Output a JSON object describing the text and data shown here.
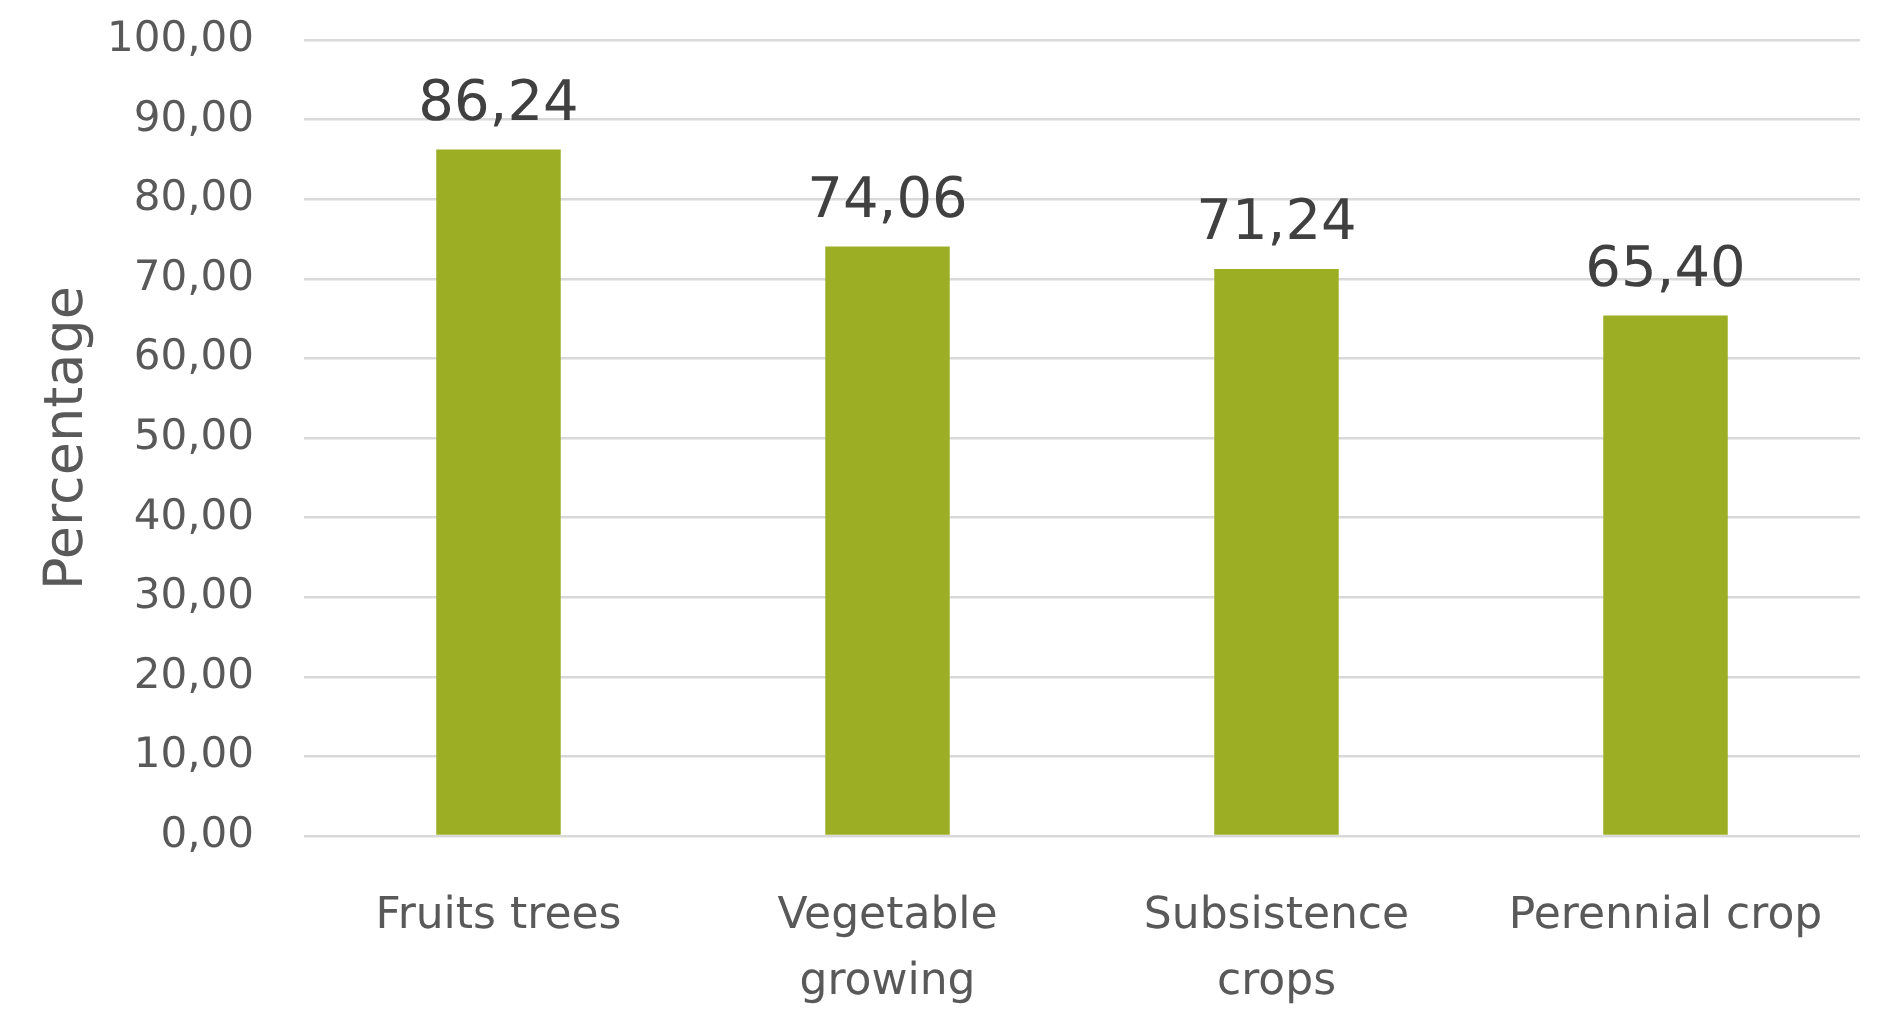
{
  "chart_data": {
    "type": "bar",
    "ylabel": "Percentage",
    "categories": [
      "Fruits trees",
      "Vegetable growing",
      "Subsistence crops",
      "Perennial crop"
    ],
    "values": [
      86.24,
      74.06,
      71.24,
      65.4
    ],
    "color": "#9caf24",
    "value_labels": [
      "86,24",
      "74,06",
      "71,24",
      "65,40"
    ],
    "ylim": [
      0,
      100
    ],
    "yticks": [
      {
        "value": 0,
        "label": "0,00"
      },
      {
        "value": 10,
        "label": "10,00"
      },
      {
        "value": 20,
        "label": "20,00"
      },
      {
        "value": 30,
        "label": "30,00"
      },
      {
        "value": 40,
        "label": "40,00"
      },
      {
        "value": 50,
        "label": "50,00"
      },
      {
        "value": 60,
        "label": "60,00"
      },
      {
        "value": 70,
        "label": "70,00"
      },
      {
        "value": 80,
        "label": "80,00"
      },
      {
        "value": 90,
        "label": "90,00"
      },
      {
        "value": 100,
        "label": "100,00"
      }
    ],
    "grid": "y"
  }
}
